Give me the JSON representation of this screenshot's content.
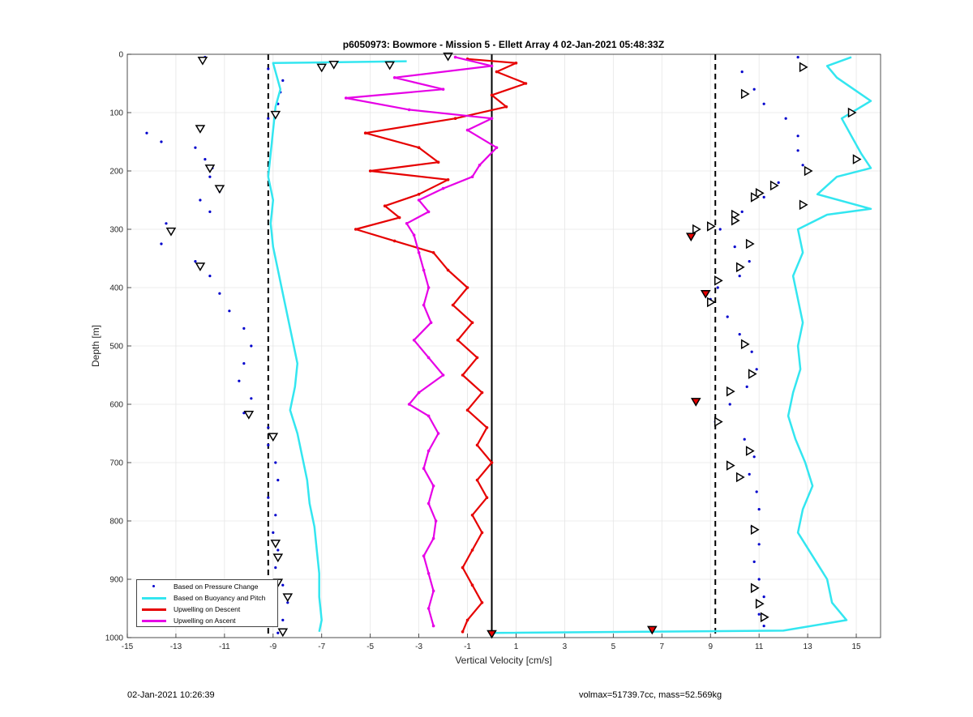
{
  "chart_data": {
    "type": "scatter",
    "title": "p6050973: Bowmore - Mission 5 - Ellett Array 4 02-Jan-2021 05:48:33Z",
    "xlabel": "Vertical Velocity [cm/s]",
    "ylabel": "Depth [m]",
    "xlim": [
      -15,
      16
    ],
    "ylim": [
      0,
      1000
    ],
    "y_reversed": true,
    "grid": true,
    "x_ticks": [
      -15,
      -13,
      -11,
      -9,
      -7,
      -5,
      -3,
      -1,
      1,
      3,
      5,
      7,
      9,
      11,
      13,
      15
    ],
    "y_ticks": [
      0,
      100,
      200,
      300,
      400,
      500,
      600,
      700,
      800,
      900,
      1000
    ],
    "reference_lines": {
      "dashed": [
        -9.2,
        9.2
      ],
      "solid": [
        0
      ]
    },
    "legend_position": "bottom-left",
    "series": [
      {
        "name": "Based on Pressure Change",
        "style": "dots",
        "color": "#0000cc",
        "points_descent": [
          [
            -11.8,
            5
          ],
          [
            -9.2,
            25
          ],
          [
            -8.6,
            45
          ],
          [
            -8.7,
            65
          ],
          [
            -8.8,
            85
          ],
          [
            -9.2,
            110
          ],
          [
            -14.2,
            135
          ],
          [
            -13.6,
            150
          ],
          [
            -12.2,
            160
          ],
          [
            -11.8,
            180
          ],
          [
            -11.5,
            195
          ],
          [
            -11.6,
            210
          ],
          [
            -11.2,
            235
          ],
          [
            -12.0,
            250
          ],
          [
            -11.6,
            270
          ],
          [
            -13.4,
            290
          ],
          [
            -13.2,
            305
          ],
          [
            -13.6,
            325
          ],
          [
            -12.2,
            355
          ],
          [
            -11.6,
            380
          ],
          [
            -11.2,
            410
          ],
          [
            -10.8,
            440
          ],
          [
            -10.2,
            470
          ],
          [
            -9.9,
            500
          ],
          [
            -10.2,
            530
          ],
          [
            -10.4,
            560
          ],
          [
            -9.9,
            590
          ],
          [
            -10.2,
            615
          ],
          [
            -9.2,
            640
          ],
          [
            -9.2,
            670
          ],
          [
            -8.9,
            700
          ],
          [
            -8.8,
            730
          ],
          [
            -9.2,
            760
          ],
          [
            -8.9,
            790
          ],
          [
            -9.0,
            820
          ],
          [
            -8.8,
            850
          ],
          [
            -8.9,
            880
          ],
          [
            -8.6,
            910
          ],
          [
            -8.4,
            940
          ],
          [
            -8.6,
            970
          ],
          [
            -8.8,
            992
          ]
        ],
        "points_ascent": [
          [
            12.6,
            5
          ],
          [
            10.3,
            30
          ],
          [
            10.8,
            60
          ],
          [
            11.2,
            85
          ],
          [
            12.1,
            110
          ],
          [
            12.6,
            140
          ],
          [
            12.6,
            165
          ],
          [
            12.8,
            190
          ],
          [
            11.8,
            220
          ],
          [
            11.2,
            245
          ],
          [
            10.3,
            270
          ],
          [
            9.4,
            300
          ],
          [
            8.2,
            310
          ],
          [
            10.0,
            330
          ],
          [
            10.6,
            355
          ],
          [
            10.2,
            380
          ],
          [
            9.3,
            400
          ],
          [
            9.0,
            420
          ],
          [
            9.7,
            450
          ],
          [
            10.2,
            480
          ],
          [
            10.7,
            510
          ],
          [
            10.9,
            540
          ],
          [
            10.5,
            570
          ],
          [
            9.8,
            600
          ],
          [
            9.2,
            630
          ],
          [
            10.4,
            660
          ],
          [
            10.8,
            690
          ],
          [
            10.6,
            720
          ],
          [
            10.9,
            750
          ],
          [
            11.0,
            780
          ],
          [
            10.7,
            810
          ],
          [
            11.0,
            840
          ],
          [
            10.8,
            870
          ],
          [
            11.0,
            900
          ],
          [
            11.2,
            930
          ],
          [
            11.0,
            960
          ],
          [
            11.2,
            980
          ]
        ]
      },
      {
        "name": "Based on Buoyancy and Pitch",
        "style": "line",
        "color": "#33e6f0",
        "points_descent": [
          [
            -3.5,
            12
          ],
          [
            -9.0,
            15
          ],
          [
            -8.9,
            30
          ],
          [
            -8.7,
            60
          ],
          [
            -8.9,
            90
          ],
          [
            -9.0,
            130
          ],
          [
            -9.1,
            170
          ],
          [
            -9.2,
            210
          ],
          [
            -9.0,
            250
          ],
          [
            -9.1,
            290
          ],
          [
            -9.0,
            330
          ],
          [
            -8.8,
            370
          ],
          [
            -8.6,
            410
          ],
          [
            -8.4,
            450
          ],
          [
            -8.2,
            490
          ],
          [
            -8.0,
            530
          ],
          [
            -8.1,
            570
          ],
          [
            -8.3,
            610
          ],
          [
            -8.0,
            650
          ],
          [
            -7.8,
            690
          ],
          [
            -7.6,
            730
          ],
          [
            -7.5,
            770
          ],
          [
            -7.3,
            810
          ],
          [
            -7.2,
            850
          ],
          [
            -7.1,
            890
          ],
          [
            -7.1,
            930
          ],
          [
            -7.0,
            970
          ],
          [
            -7.1,
            990
          ]
        ],
        "points_ascent": [
          [
            14.8,
            5
          ],
          [
            13.8,
            20
          ],
          [
            14.2,
            40
          ],
          [
            14.9,
            60
          ],
          [
            15.6,
            80
          ],
          [
            14.4,
            110
          ],
          [
            14.8,
            140
          ],
          [
            15.2,
            170
          ],
          [
            15.6,
            195
          ],
          [
            14.2,
            210
          ],
          [
            13.4,
            240
          ],
          [
            15.6,
            265
          ],
          [
            13.8,
            275
          ],
          [
            12.6,
            300
          ],
          [
            12.8,
            340
          ],
          [
            12.4,
            380
          ],
          [
            12.6,
            420
          ],
          [
            12.8,
            460
          ],
          [
            12.6,
            500
          ],
          [
            12.7,
            540
          ],
          [
            12.4,
            580
          ],
          [
            12.2,
            620
          ],
          [
            12.5,
            660
          ],
          [
            12.9,
            700
          ],
          [
            13.2,
            740
          ],
          [
            12.8,
            780
          ],
          [
            12.6,
            820
          ],
          [
            13.2,
            860
          ],
          [
            13.8,
            900
          ],
          [
            14.0,
            940
          ],
          [
            14.6,
            970
          ],
          [
            12.0,
            988
          ],
          [
            0.0,
            992
          ]
        ]
      },
      {
        "name": "Upwelling on Descent",
        "style": "line-with-dots",
        "color": "#e60000",
        "points": [
          [
            -1.0,
            8
          ],
          [
            1.0,
            15
          ],
          [
            0.2,
            30
          ],
          [
            1.4,
            50
          ],
          [
            0.0,
            70
          ],
          [
            0.6,
            90
          ],
          [
            -1.5,
            110
          ],
          [
            -5.2,
            135
          ],
          [
            -3.0,
            160
          ],
          [
            -2.2,
            185
          ],
          [
            -5.0,
            200
          ],
          [
            -1.8,
            215
          ],
          [
            -3.0,
            240
          ],
          [
            -4.4,
            260
          ],
          [
            -3.8,
            280
          ],
          [
            -5.6,
            300
          ],
          [
            -4.0,
            320
          ],
          [
            -2.4,
            340
          ],
          [
            -1.8,
            370
          ],
          [
            -1.0,
            400
          ],
          [
            -1.6,
            430
          ],
          [
            -0.8,
            460
          ],
          [
            -1.4,
            490
          ],
          [
            -0.6,
            520
          ],
          [
            -1.2,
            550
          ],
          [
            -0.4,
            580
          ],
          [
            -1.0,
            610
          ],
          [
            -0.2,
            640
          ],
          [
            -0.6,
            670
          ],
          [
            0.0,
            700
          ],
          [
            -0.6,
            730
          ],
          [
            -0.2,
            760
          ],
          [
            -0.8,
            790
          ],
          [
            -0.4,
            820
          ],
          [
            -0.8,
            850
          ],
          [
            -1.2,
            880
          ],
          [
            -0.8,
            910
          ],
          [
            -0.4,
            940
          ],
          [
            -1.0,
            970
          ],
          [
            -1.2,
            990
          ]
        ]
      },
      {
        "name": "Upwelling on Ascent",
        "style": "line-with-dots",
        "color": "#e600e6",
        "points": [
          [
            -1.5,
            5
          ],
          [
            0.0,
            20
          ],
          [
            -4.0,
            40
          ],
          [
            -2.0,
            60
          ],
          [
            -6.0,
            75
          ],
          [
            -3.4,
            95
          ],
          [
            0.0,
            110
          ],
          [
            -1.0,
            130
          ],
          [
            0.2,
            160
          ],
          [
            -0.5,
            190
          ],
          [
            -0.8,
            210
          ],
          [
            -2.0,
            230
          ],
          [
            -3.0,
            250
          ],
          [
            -2.6,
            270
          ],
          [
            -3.5,
            290
          ],
          [
            -3.2,
            310
          ],
          [
            -3.0,
            340
          ],
          [
            -2.8,
            370
          ],
          [
            -2.6,
            400
          ],
          [
            -2.8,
            430
          ],
          [
            -2.5,
            460
          ],
          [
            -3.2,
            490
          ],
          [
            -2.6,
            520
          ],
          [
            -2.0,
            550
          ],
          [
            -3.0,
            580
          ],
          [
            -3.4,
            600
          ],
          [
            -2.6,
            620
          ],
          [
            -2.2,
            650
          ],
          [
            -2.6,
            680
          ],
          [
            -2.8,
            710
          ],
          [
            -2.4,
            740
          ],
          [
            -2.6,
            770
          ],
          [
            -2.3,
            800
          ],
          [
            -2.4,
            830
          ],
          [
            -2.8,
            860
          ],
          [
            -2.6,
            890
          ],
          [
            -2.4,
            920
          ],
          [
            -2.6,
            950
          ],
          [
            -2.4,
            980
          ]
        ]
      }
    ],
    "markers": {
      "triangles_descent": [
        [
          -11.9,
          10
        ],
        [
          -6.5,
          17
        ],
        [
          -7.0,
          22
        ],
        [
          -4.2,
          18
        ],
        [
          -1.8,
          3
        ],
        [
          -8.9,
          103
        ],
        [
          -12.0,
          127
        ],
        [
          -11.6,
          195
        ],
        [
          -11.2,
          230
        ],
        [
          -13.2,
          303
        ],
        [
          -12.0,
          363
        ],
        [
          -10.0,
          617
        ],
        [
          -9.0,
          655
        ],
        [
          -8.9,
          838
        ],
        [
          -8.8,
          862
        ],
        [
          -8.8,
          905
        ],
        [
          -8.4,
          930
        ],
        [
          -8.6,
          990
        ]
      ],
      "triangles_ascent": [
        [
          12.8,
          22
        ],
        [
          10.4,
          68
        ],
        [
          14.8,
          100
        ],
        [
          15.0,
          180
        ],
        [
          13.0,
          200
        ],
        [
          11.6,
          225
        ],
        [
          11.0,
          238
        ],
        [
          10.8,
          245
        ],
        [
          10.0,
          275
        ],
        [
          10.0,
          285
        ],
        [
          12.8,
          258
        ],
        [
          9.0,
          295
        ],
        [
          8.4,
          300
        ],
        [
          10.6,
          325
        ],
        [
          10.2,
          365
        ],
        [
          9.3,
          388
        ],
        [
          9.0,
          425
        ],
        [
          10.4,
          497
        ],
        [
          10.7,
          548
        ],
        [
          9.8,
          578
        ],
        [
          9.3,
          630
        ],
        [
          10.6,
          680
        ],
        [
          9.8,
          705
        ],
        [
          10.2,
          725
        ],
        [
          10.8,
          815
        ],
        [
          10.8,
          915
        ],
        [
          11.0,
          942
        ],
        [
          11.2,
          965
        ]
      ],
      "red_filled": [
        [
          8.2,
          312
        ],
        [
          8.8,
          410
        ],
        [
          8.4,
          595
        ],
        [
          6.6,
          986
        ],
        [
          0.0,
          993
        ]
      ]
    }
  },
  "legend": {
    "items": [
      {
        "label": "Based on Pressure Change",
        "color": "#0000cc",
        "kind": "dot"
      },
      {
        "label": "Based on Buoyancy and Pitch",
        "color": "#33e6f0",
        "kind": "line"
      },
      {
        "label": "Upwelling on Descent",
        "color": "#e60000",
        "kind": "line"
      },
      {
        "label": "Upwelling on Ascent",
        "color": "#e600e6",
        "kind": "line"
      }
    ]
  },
  "footer": {
    "left": "02-Jan-2021 10:26:39",
    "right": "volmax=51739.7cc, mass=52.569kg"
  }
}
